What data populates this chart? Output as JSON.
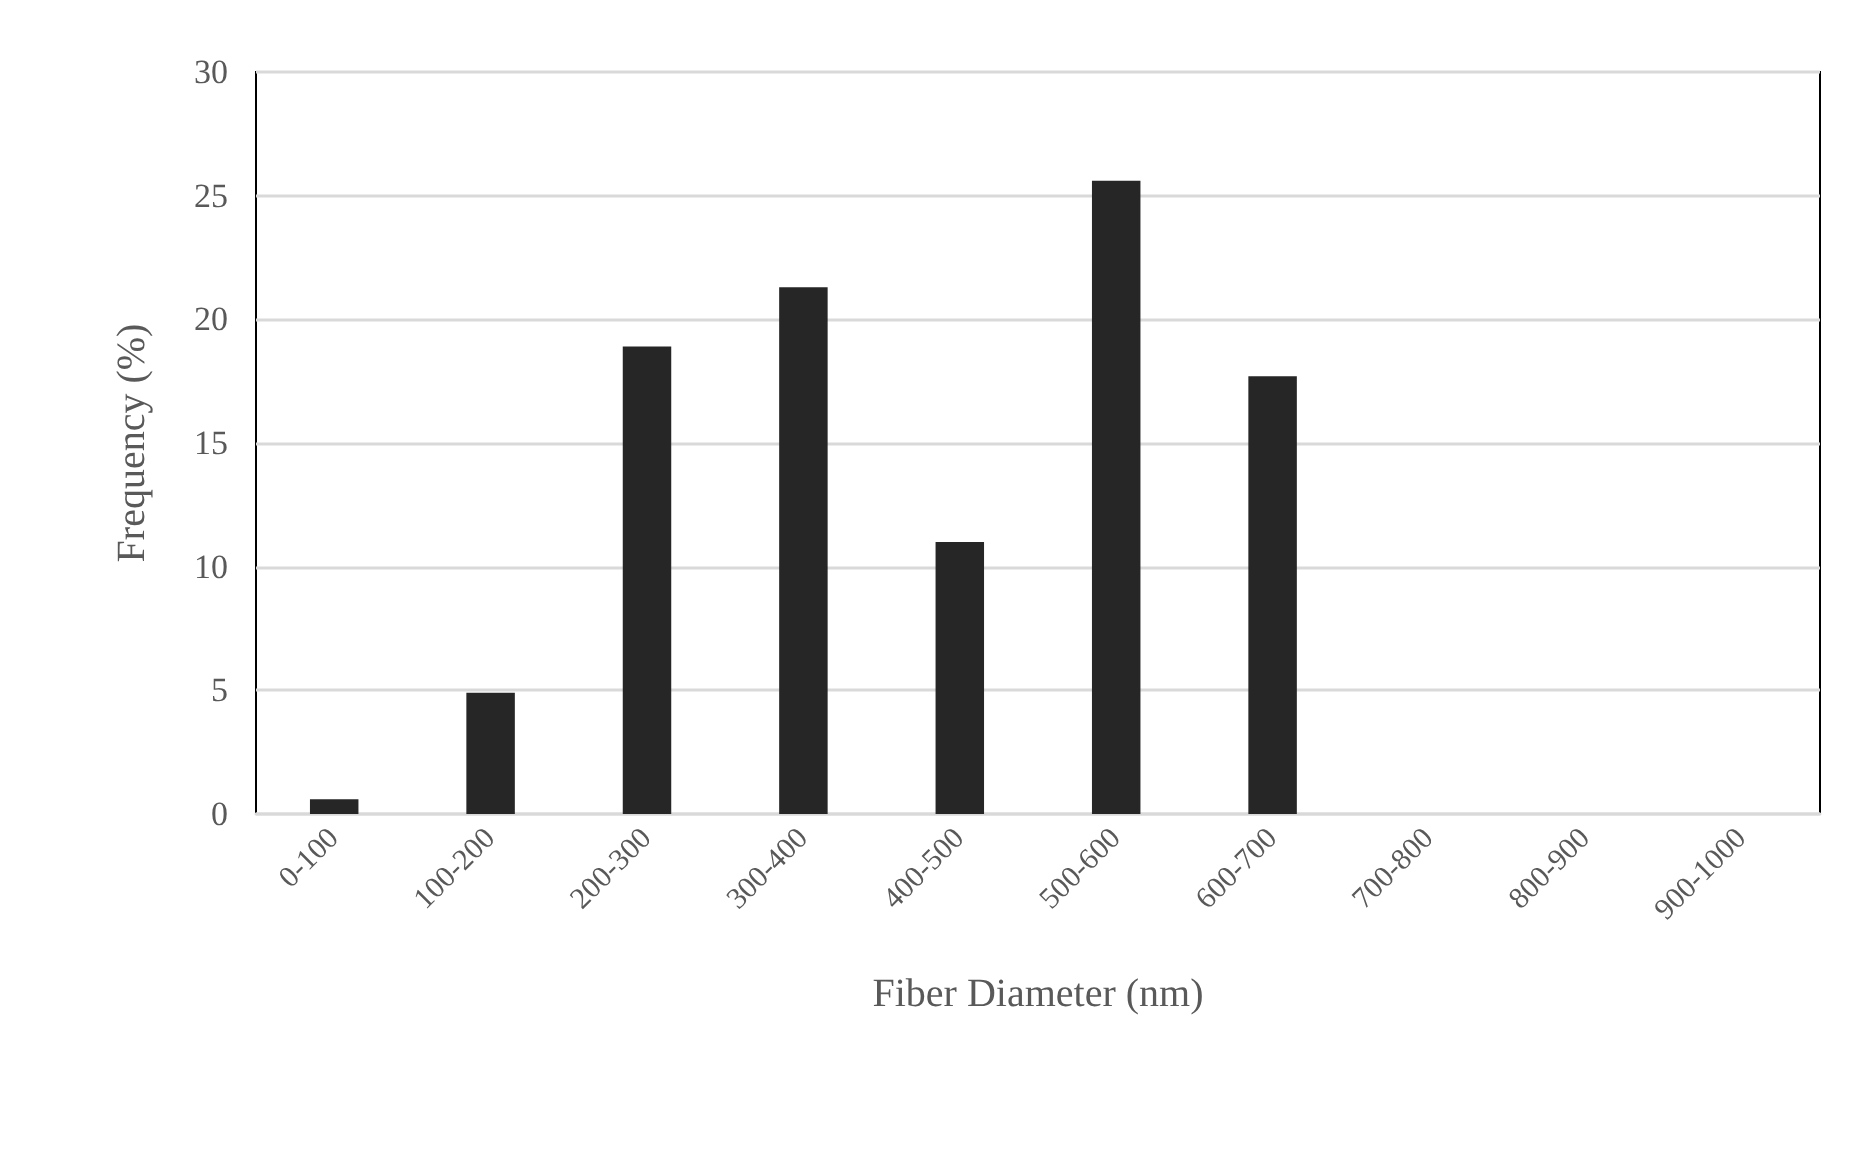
{
  "chart_data": {
    "type": "bar",
    "xlabel": "Fiber Diameter (nm)",
    "ylabel": "Frequency (%)",
    "categories": [
      "0-100",
      "100-200",
      "200-300",
      "300-400",
      "400-500",
      "500-600",
      "600-700",
      "700-800",
      "800-900",
      "900-1000"
    ],
    "values": [
      0.6,
      4.9,
      18.9,
      21.3,
      11.0,
      25.6,
      17.7,
      0,
      0,
      0
    ],
    "color": "#262626",
    "ylim": [
      0,
      30
    ],
    "yticks": [
      0,
      5,
      10,
      15,
      20,
      25,
      30
    ],
    "grid": "y"
  }
}
